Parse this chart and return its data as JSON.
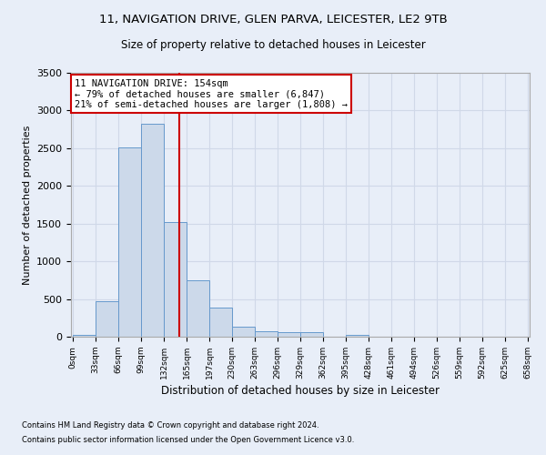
{
  "title1": "11, NAVIGATION DRIVE, GLEN PARVA, LEICESTER, LE2 9TB",
  "title2": "Size of property relative to detached houses in Leicester",
  "xlabel": "Distribution of detached houses by size in Leicester",
  "ylabel": "Number of detached properties",
  "footnote1": "Contains HM Land Registry data © Crown copyright and database right 2024.",
  "footnote2": "Contains public sector information licensed under the Open Government Licence v3.0.",
  "ann_line1": "11 NAVIGATION DRIVE: 154sqm",
  "ann_line2": "← 79% of detached houses are smaller (6,847)",
  "ann_line3": "21% of semi-detached houses are larger (1,808) →",
  "property_size": 154,
  "bin_size": 33,
  "bar_heights": [
    30,
    475,
    2510,
    2820,
    1520,
    745,
    385,
    135,
    75,
    55,
    55,
    0,
    30,
    0,
    0,
    0,
    0,
    0,
    0,
    0
  ],
  "bar_color": "#ccd9ea",
  "bar_edge_color": "#6699cc",
  "vline_color": "#cc0000",
  "ylim_max": 3500,
  "xtick_labels": [
    "0sqm",
    "33sqm",
    "66sqm",
    "99sqm",
    "132sqm",
    "165sqm",
    "197sqm",
    "230sqm",
    "263sqm",
    "296sqm",
    "329sqm",
    "362sqm",
    "395sqm",
    "428sqm",
    "461sqm",
    "494sqm",
    "526sqm",
    "559sqm",
    "592sqm",
    "625sqm",
    "658sqm"
  ],
  "grid_color": "#d0d8e8",
  "bg_color": "#e8eef8",
  "ann_edgecolor": "#cc0000",
  "ann_facecolor": "white"
}
